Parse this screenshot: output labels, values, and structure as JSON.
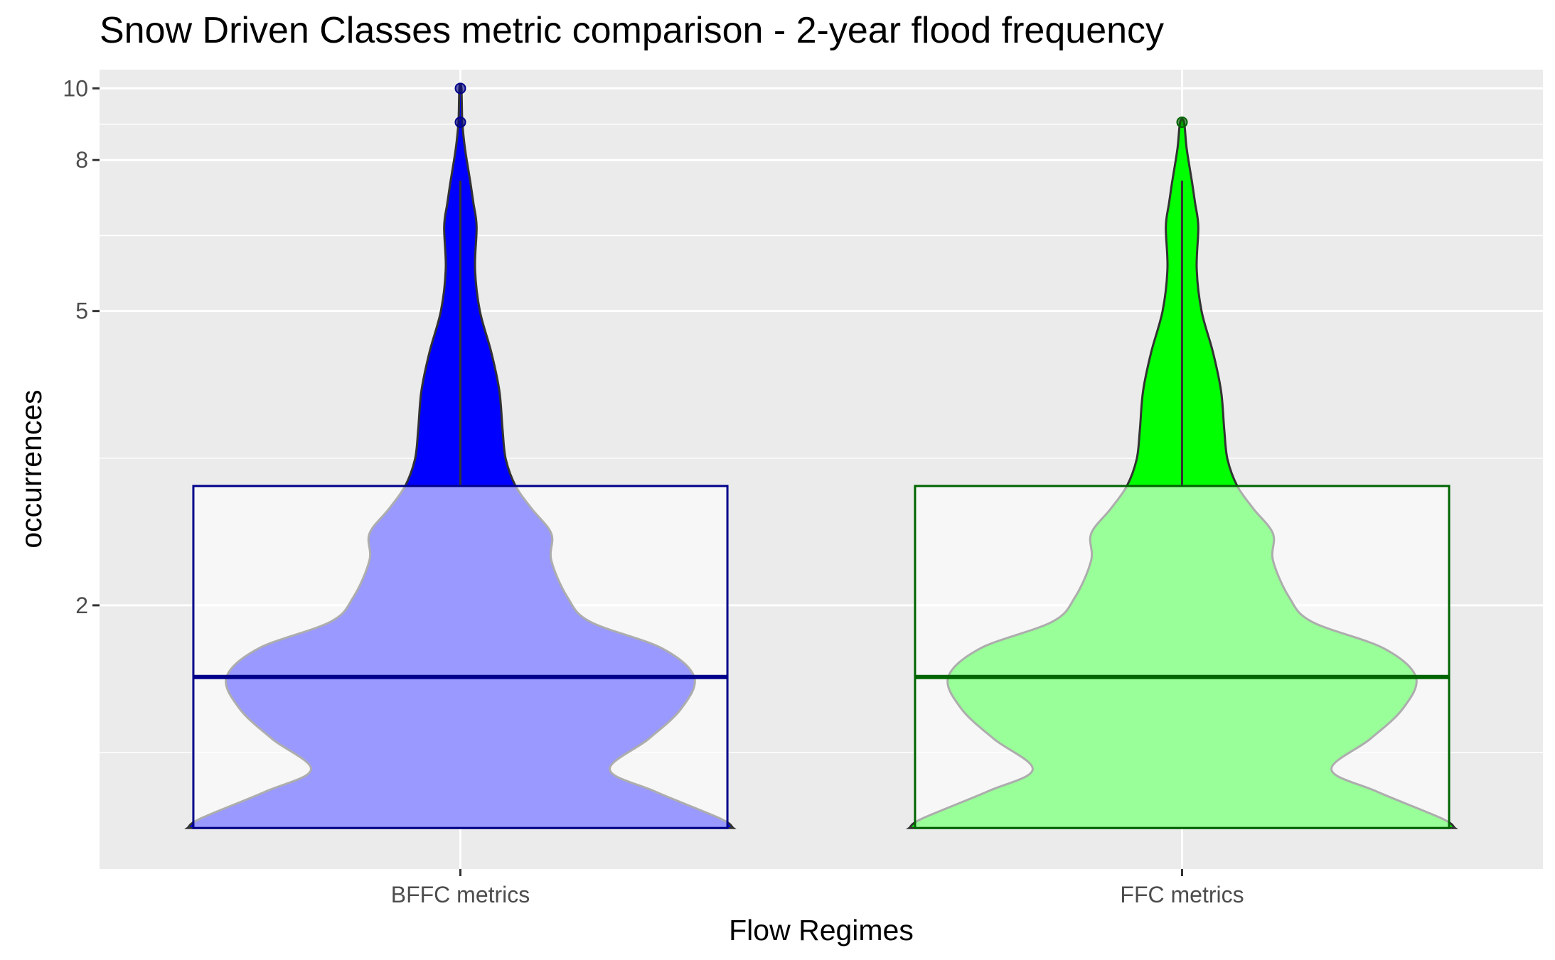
{
  "chart_data": {
    "type": "violin",
    "title": "Snow Driven Classes metric comparison - 2-year flood frequency",
    "xlabel": "Flow Regimes",
    "ylabel": "occurrences",
    "y_scale": "log",
    "y_ticks": [
      2,
      5,
      8,
      10
    ],
    "y_tick_labels": [
      "2",
      "5",
      "8",
      "10"
    ],
    "ylim": [
      0.88,
      10.6
    ],
    "grid": true,
    "legend": "none",
    "panel_background": "#ebebeb",
    "categories": [
      "BFFC metrics",
      "FFC metrics"
    ],
    "series": [
      {
        "name": "BFFC metrics",
        "fill": "#0000ff",
        "box_color": "#00008b",
        "box_fill_overlay": "#ffffff",
        "box": {
          "q1": 1.0,
          "median": 1.6,
          "q3": 2.9,
          "whisker_low": 1.0,
          "whisker_high": 7.5
        },
        "outliers": [
          9.0,
          10.0
        ],
        "density": {
          "y": [
            1.0,
            1.03,
            1.12,
            1.2,
            1.32,
            1.45,
            1.6,
            1.75,
            1.9,
            2.05,
            2.3,
            2.5,
            2.7,
            2.9,
            3.15,
            3.45,
            3.9,
            4.4,
            5.0,
            5.7,
            6.5,
            7.0,
            7.5,
            8.3,
            9.0,
            10.0
          ],
          "w": [
            0.84,
            0.8,
            0.6,
            0.46,
            0.58,
            0.68,
            0.72,
            0.62,
            0.4,
            0.33,
            0.28,
            0.28,
            0.22,
            0.17,
            0.14,
            0.13,
            0.12,
            0.095,
            0.06,
            0.045,
            0.05,
            0.04,
            0.03,
            0.014,
            0.006,
            0.003
          ]
        }
      },
      {
        "name": "FFC metrics",
        "fill": "#00ff00",
        "box_color": "#006400",
        "box_fill_overlay": "#ffffff",
        "box": {
          "q1": 1.0,
          "median": 1.6,
          "q3": 2.9,
          "whisker_low": 1.0,
          "whisker_high": 7.5
        },
        "outliers": [
          9.0
        ],
        "density": {
          "y": [
            1.0,
            1.03,
            1.12,
            1.2,
            1.32,
            1.45,
            1.6,
            1.75,
            1.9,
            2.05,
            2.3,
            2.5,
            2.7,
            2.9,
            3.15,
            3.45,
            3.9,
            4.4,
            5.0,
            5.7,
            6.5,
            7.0,
            7.5,
            8.3,
            9.0
          ],
          "w": [
            0.84,
            0.8,
            0.6,
            0.46,
            0.58,
            0.68,
            0.72,
            0.62,
            0.4,
            0.33,
            0.28,
            0.28,
            0.22,
            0.17,
            0.14,
            0.13,
            0.12,
            0.095,
            0.06,
            0.045,
            0.05,
            0.04,
            0.03,
            0.014,
            0.006
          ]
        }
      }
    ]
  }
}
